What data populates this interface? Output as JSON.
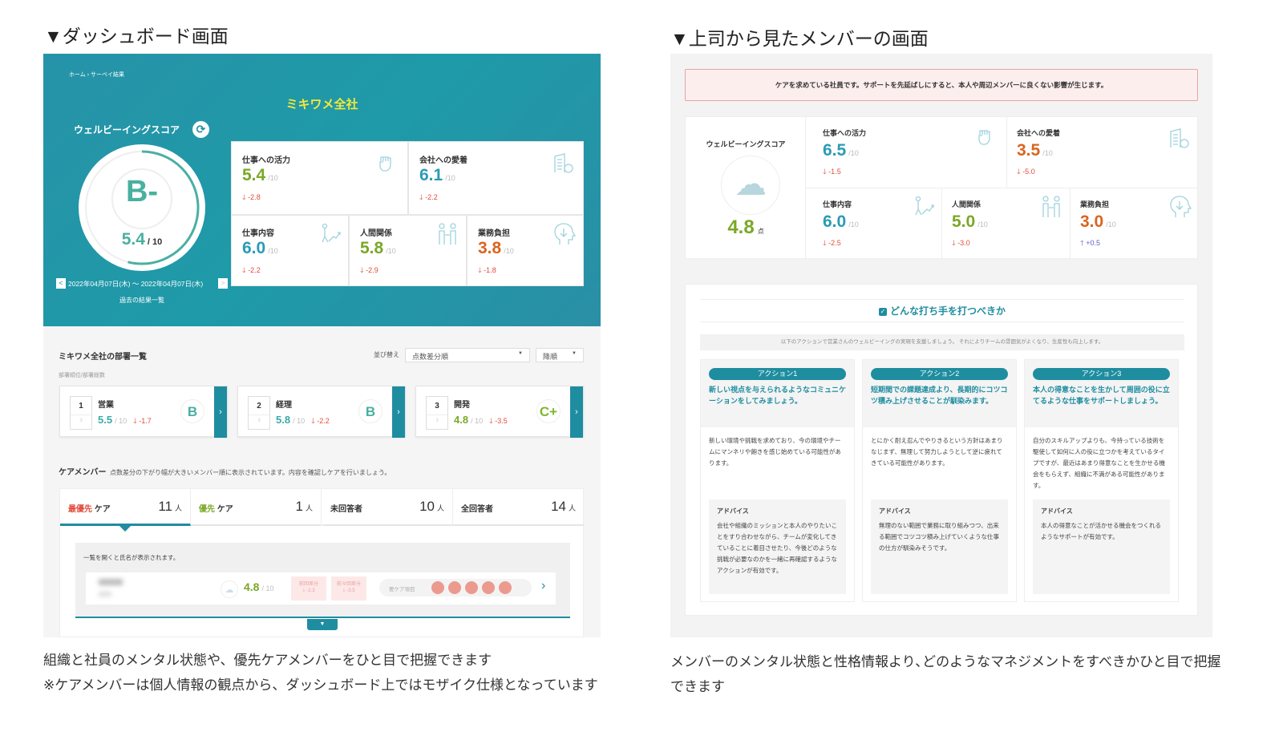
{
  "left": {
    "heading": "▼ダッシュボード画面",
    "breadcrumb": "ホーム › サーベイ結果",
    "org_title": "ミキワメ全社",
    "score_label": "ウェルビーイングスコア",
    "grade": "B-",
    "score": "5.4",
    "score_max": "/ 10",
    "score_fraction": 0.54,
    "date_range": "2022年04月07日(木) ～ 2022年04月07日(木)",
    "prev_label": "<",
    "next_label": ">",
    "past_results": "過去の結果一覧",
    "metrics": [
      {
        "label": "仕事への活力",
        "value": "5.4",
        "max": "/10",
        "diff": "-2.8",
        "icon": "fist-icon"
      },
      {
        "label": "会社への愛着",
        "value": "6.1",
        "max": "/10",
        "diff": "-2.2",
        "icon": "building-heart-icon"
      },
      {
        "label": "仕事内容",
        "value": "6.0",
        "max": "/10",
        "diff": "-2.2",
        "icon": "climbing-person-icon"
      },
      {
        "label": "人間関係",
        "value": "5.8",
        "max": "/10",
        "diff": "-2.9",
        "icon": "two-people-icon"
      },
      {
        "label": "業務負担",
        "value": "3.8",
        "max": "/10",
        "diff": "-1.8",
        "icon": "head-arrow-icon"
      }
    ],
    "dept_section_title": "ミキワメ全社の部署一覧",
    "sort_label": "並び替え",
    "sort_value": "点数差分順",
    "order_value": "降順",
    "rank_caption": "部署順位/部署総数",
    "depts": [
      {
        "rank": "1",
        "total": "3",
        "name": "営業",
        "score": "5.5",
        "max": "/ 10",
        "diff": "-1.7",
        "grade": "B"
      },
      {
        "rank": "2",
        "total": "3",
        "name": "経理",
        "score": "5.8",
        "max": "/ 10",
        "diff": "-2.2",
        "grade": "B"
      },
      {
        "rank": "3",
        "total": "3",
        "name": "開発",
        "score": "4.8",
        "max": "/ 10",
        "diff": "-3.5",
        "grade": "C+"
      }
    ],
    "care_title": "ケアメンバー",
    "care_desc": "点数差分の下がり幅が大きいメンバー順に表示されています。内容を確認しケアを行いましょう。",
    "tabs": [
      {
        "prefix": "最優先",
        "label": " ケア",
        "count": "11",
        "unit": "人"
      },
      {
        "prefix": "優先",
        "label": " ケア",
        "count": "1",
        "unit": "人"
      },
      {
        "prefix": "",
        "label": "未回答者",
        "count": "10",
        "unit": "人"
      },
      {
        "prefix": "",
        "label": "全回答者",
        "count": "14",
        "unit": "人"
      }
    ],
    "list_note": "一覧を開くと氏名が表示されます。",
    "member": {
      "score": "4.8",
      "max": "/ 10",
      "prev_label": "前回差分",
      "prev_diff": "-2.3",
      "prev2_label": "前々回差分",
      "prev2_diff": "-3.5",
      "care_items_label": "要ケア項目"
    },
    "caption1": "組織と社員のメンタル状態や、優先ケアメンバーをひと目で把握できます",
    "caption2": "※ケアメンバーは個人情報の観点から、ダッシュボード上ではモザイク仕様となっています"
  },
  "right": {
    "heading": "▼上司から見たメンバーの画面",
    "alert": "ケアを求めている社員です。サポートを先延ばしにすると、本人や周辺メンバーに良くない影響が生じます。",
    "score_label": "ウェルビーイングスコア",
    "score": "4.8",
    "score_unit": "点",
    "metrics": [
      {
        "label": "仕事への活力",
        "value": "6.5",
        "max": "/10",
        "diff": "-1.5",
        "icon": "fist-icon"
      },
      {
        "label": "会社への愛着",
        "value": "3.5",
        "max": "/10",
        "diff": "-5.0",
        "icon": "building-heart-icon"
      },
      {
        "label": "仕事内容",
        "value": "6.0",
        "max": "/10",
        "diff": "-2.5",
        "icon": "climbing-person-icon"
      },
      {
        "label": "人間関係",
        "value": "5.0",
        "max": "/10",
        "diff": "-3.0",
        "icon": "two-people-icon"
      },
      {
        "label": "業務負担",
        "value": "3.0",
        "max": "/10",
        "diff": "+0.5",
        "icon": "head-arrow-icon"
      }
    ],
    "action_title": "どんな打ち手を打つべきか",
    "action_intro": "以下のアクションで営業さんのウェルビーイングの実現を支援しましょう。 それによりチームの雰囲気がよくなり、生産性も向上します。",
    "advice_label": "アドバイス",
    "actions": [
      {
        "tag": "アクション1",
        "headline": "新しい視点を与えられるようなコミュニケーションをしてみましょう。",
        "body": "新しい環境や挑戦を求めており、今の環境やチームにマンネリや飽きを感じ始めている可能性があります。",
        "advice": "会社や組織のミッションと本人のやりたいことをすり合わせながら、チームが変化してきていることに着目させたり、今後どのような挑戦が必要なのかを一緒に再確認するようなアクションが有効です。"
      },
      {
        "tag": "アクション2",
        "headline": "短期間での課題達成より、長期的にコツコツ積み上げさせることが馴染みます。",
        "body": "とにかく耐え忍んでやりきるという方針はあまりなじまず、無理して努力しようとして逆に疲れてきている可能性があります。",
        "advice": "無理のない範囲で業務に取り組みつつ、出来る範囲でコツコツ積み上げていくような仕事の仕方が馴染みそうです。"
      },
      {
        "tag": "アクション3",
        "headline": "本人の得意なことを生かして周囲の役に立てるような仕事をサポートしましょう。",
        "body": "自分のスキルアップよりも、今持っている技術を駆使して如何に人の役に立つかを考えているタイプですが、最近はあまり得意なことを生かせる機会をもらえず、組織に不満がある可能性があります。",
        "advice": "本人の得意なことが活かせる機会をつくれるようなサポートが有効です。"
      }
    ],
    "caption": "メンバーのメンタル状態と性格情報より､どのようなマネジメントをすべきかひと目で把握できます"
  },
  "colors": {
    "teal": "#1f8da0",
    "green": "#7aa827",
    "blue": "#2a9bb5",
    "orange": "#d9651f",
    "down": "#e04b3a",
    "up": "#5a63c9",
    "title_yellow": "#f3e83a"
  }
}
